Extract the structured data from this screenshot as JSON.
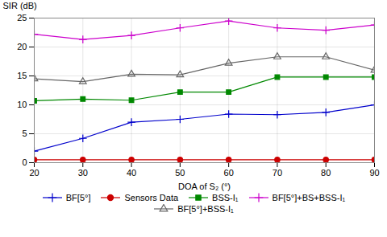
{
  "chart_data": {
    "type": "line",
    "x": [
      20,
      30,
      40,
      50,
      60,
      70,
      80,
      90
    ],
    "xlabel": "DOA of S₂ (°)",
    "ylabel": "SIR (dB)",
    "xlim": [
      20,
      90
    ],
    "ylim": [
      0,
      25
    ],
    "xticks": [
      20,
      30,
      40,
      50,
      60,
      70,
      80,
      90
    ],
    "yticks": [
      0,
      5,
      10,
      15,
      20,
      25
    ],
    "grid": true,
    "series": [
      {
        "name": "BF[5°]",
        "color": "#0000cc",
        "marker": "plus",
        "values": [
          2.0,
          4.2,
          7.0,
          7.5,
          8.4,
          8.3,
          8.7,
          10.0
        ]
      },
      {
        "name": "Sensors Data",
        "color": "#cc0000",
        "marker": "circle",
        "values": [
          0.5,
          0.5,
          0.5,
          0.5,
          0.5,
          0.5,
          0.5,
          0.5
        ]
      },
      {
        "name": "BSS-I₁",
        "color": "#008800",
        "marker": "square",
        "values": [
          10.7,
          11.0,
          10.8,
          12.2,
          12.2,
          14.8,
          14.8,
          14.8
        ]
      },
      {
        "name": "BF[5°]+BS+BSS-I₁",
        "color": "#cc00cc",
        "marker": "plus",
        "values": [
          22.2,
          21.3,
          22.0,
          23.3,
          24.5,
          23.3,
          22.9,
          23.8
        ]
      },
      {
        "name": "BF[5°]+BSS-I₁",
        "color": "#666666",
        "marker": "triangle",
        "values": [
          14.5,
          14.0,
          15.3,
          15.2,
          17.2,
          18.3,
          18.3,
          16.0
        ]
      }
    ]
  }
}
